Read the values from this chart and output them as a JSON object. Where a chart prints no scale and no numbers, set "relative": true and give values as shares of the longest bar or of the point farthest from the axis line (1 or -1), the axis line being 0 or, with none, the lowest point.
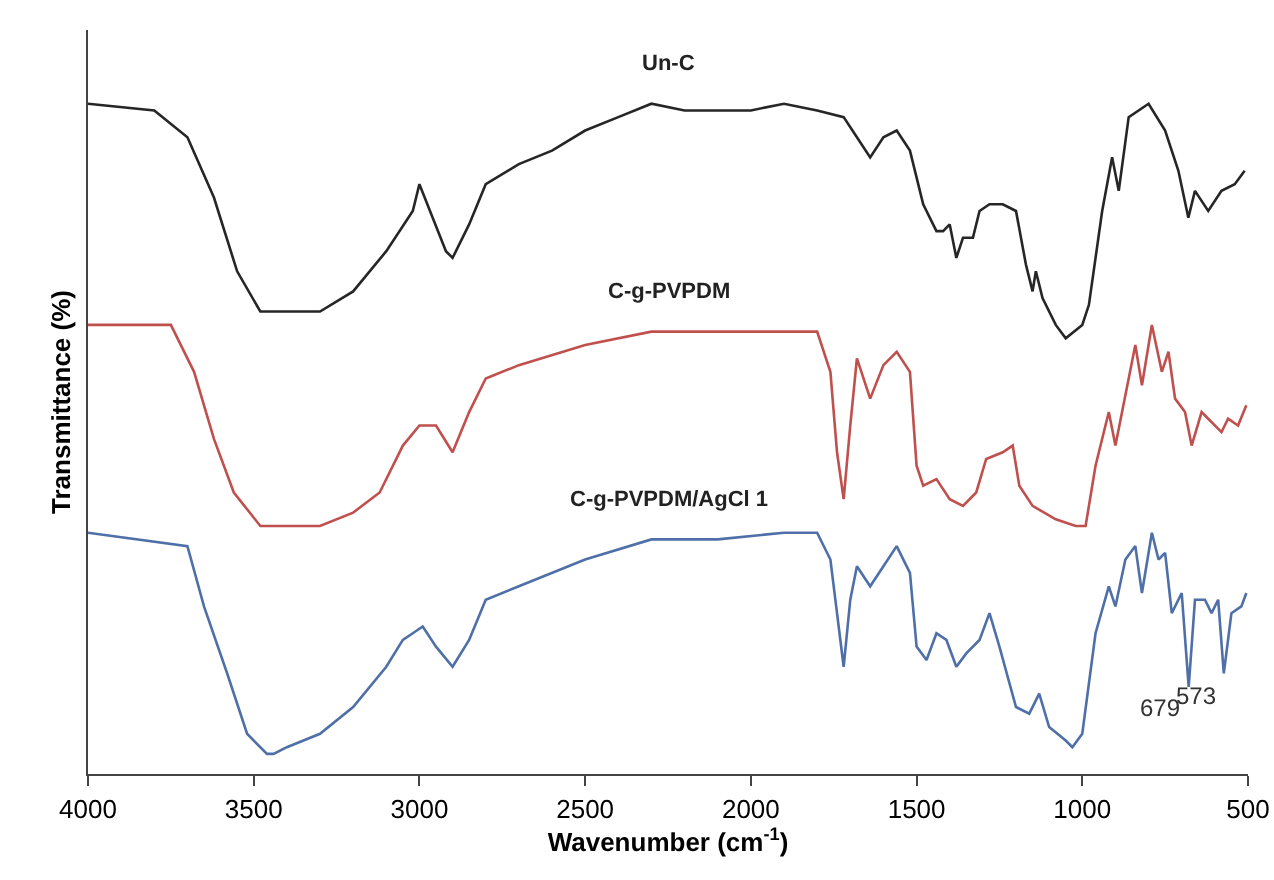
{
  "chart_data": {
    "type": "line",
    "relative": true,
    "xlabel": "Wavenumber (cm$^{-1}$)",
    "ylabel": "Transmittance (%)",
    "xlim": [
      4000,
      500
    ],
    "xticks": [
      4000,
      3500,
      3000,
      2500,
      2000,
      1500,
      1000,
      500
    ],
    "grid": false,
    "legend": false,
    "marker": "none",
    "line_style": "solid",
    "tick_labels": "x",
    "series": [
      {
        "name": "Un-C",
        "color": "#262626",
        "x": [
          4000,
          3800,
          3700,
          3620,
          3550,
          3480,
          3400,
          3300,
          3200,
          3100,
          3020,
          3000,
          2960,
          2920,
          2900,
          2850,
          2800,
          2700,
          2600,
          2500,
          2400,
          2300,
          2200,
          2100,
          2000,
          1900,
          1800,
          1720,
          1680,
          1640,
          1600,
          1560,
          1520,
          1480,
          1440,
          1420,
          1400,
          1380,
          1360,
          1330,
          1310,
          1280,
          1240,
          1200,
          1170,
          1150,
          1140,
          1120,
          1080,
          1050,
          1000,
          980,
          940,
          910,
          890,
          860,
          800,
          750,
          710,
          680,
          660,
          620,
          580,
          540,
          510
        ],
        "values": [
          1.0,
          0.99,
          0.95,
          0.86,
          0.75,
          0.69,
          0.69,
          0.69,
          0.72,
          0.78,
          0.84,
          0.88,
          0.83,
          0.78,
          0.77,
          0.82,
          0.88,
          0.91,
          0.93,
          0.96,
          0.98,
          1.0,
          0.99,
          0.99,
          0.99,
          1.0,
          0.99,
          0.98,
          0.95,
          0.92,
          0.95,
          0.96,
          0.93,
          0.85,
          0.81,
          0.81,
          0.82,
          0.77,
          0.8,
          0.8,
          0.84,
          0.85,
          0.85,
          0.84,
          0.76,
          0.72,
          0.75,
          0.71,
          0.67,
          0.65,
          0.67,
          0.7,
          0.84,
          0.92,
          0.87,
          0.98,
          1.0,
          0.96,
          0.9,
          0.83,
          0.87,
          0.84,
          0.87,
          0.88,
          0.9
        ]
      },
      {
        "name": "C-g-PVPDM",
        "color": "#c0504d",
        "x": [
          4000,
          3750,
          3680,
          3620,
          3560,
          3480,
          3400,
          3300,
          3200,
          3120,
          3050,
          3000,
          2950,
          2900,
          2850,
          2800,
          2700,
          2500,
          2300,
          2100,
          1900,
          1800,
          1760,
          1740,
          1720,
          1700,
          1680,
          1640,
          1600,
          1560,
          1520,
          1500,
          1480,
          1440,
          1400,
          1360,
          1320,
          1290,
          1240,
          1210,
          1190,
          1150,
          1080,
          1020,
          990,
          960,
          920,
          900,
          880,
          840,
          820,
          790,
          760,
          740,
          720,
          690,
          670,
          640,
          620,
          580,
          560,
          530,
          505
        ],
        "values": [
          0.67,
          0.67,
          0.6,
          0.5,
          0.42,
          0.37,
          0.37,
          0.37,
          0.39,
          0.42,
          0.49,
          0.52,
          0.52,
          0.48,
          0.54,
          0.59,
          0.61,
          0.64,
          0.66,
          0.66,
          0.66,
          0.66,
          0.6,
          0.48,
          0.41,
          0.52,
          0.62,
          0.56,
          0.61,
          0.63,
          0.6,
          0.46,
          0.43,
          0.44,
          0.41,
          0.4,
          0.42,
          0.47,
          0.48,
          0.49,
          0.43,
          0.4,
          0.38,
          0.37,
          0.37,
          0.46,
          0.54,
          0.49,
          0.54,
          0.64,
          0.58,
          0.67,
          0.6,
          0.63,
          0.56,
          0.54,
          0.49,
          0.54,
          0.53,
          0.51,
          0.53,
          0.52,
          0.55
        ]
      },
      {
        "name": "C-g-PVPDM/AgCl 1",
        "color": "#4f6fa8",
        "x": [
          4000,
          3700,
          3650,
          3580,
          3520,
          3460,
          3440,
          3400,
          3300,
          3200,
          3100,
          3050,
          3020,
          2990,
          2950,
          2900,
          2850,
          2800,
          2700,
          2500,
          2300,
          2100,
          1900,
          1800,
          1760,
          1720,
          1700,
          1680,
          1640,
          1600,
          1560,
          1520,
          1500,
          1470,
          1440,
          1410,
          1380,
          1350,
          1310,
          1280,
          1250,
          1200,
          1160,
          1130,
          1100,
          1050,
          1030,
          1000,
          960,
          920,
          900,
          870,
          840,
          820,
          790,
          770,
          750,
          730,
          700,
          679,
          660,
          630,
          610,
          590,
          573,
          550,
          520,
          505
        ],
        "values": [
          0.36,
          0.34,
          0.25,
          0.15,
          0.06,
          0.03,
          0.03,
          0.04,
          0.06,
          0.1,
          0.16,
          0.2,
          0.21,
          0.22,
          0.19,
          0.16,
          0.2,
          0.26,
          0.28,
          0.32,
          0.35,
          0.35,
          0.36,
          0.36,
          0.32,
          0.16,
          0.26,
          0.31,
          0.28,
          0.31,
          0.34,
          0.3,
          0.19,
          0.17,
          0.21,
          0.2,
          0.16,
          0.18,
          0.2,
          0.24,
          0.19,
          0.1,
          0.09,
          0.12,
          0.07,
          0.05,
          0.04,
          0.06,
          0.21,
          0.28,
          0.25,
          0.32,
          0.34,
          0.27,
          0.36,
          0.32,
          0.33,
          0.24,
          0.27,
          0.13,
          0.26,
          0.26,
          0.24,
          0.26,
          0.15,
          0.24,
          0.25,
          0.27
        ]
      }
    ],
    "annotations": [
      {
        "text": "679",
        "x": 679,
        "y": 0.13
      },
      {
        "text": "573",
        "x": 573,
        "y": 0.15
      }
    ]
  }
}
